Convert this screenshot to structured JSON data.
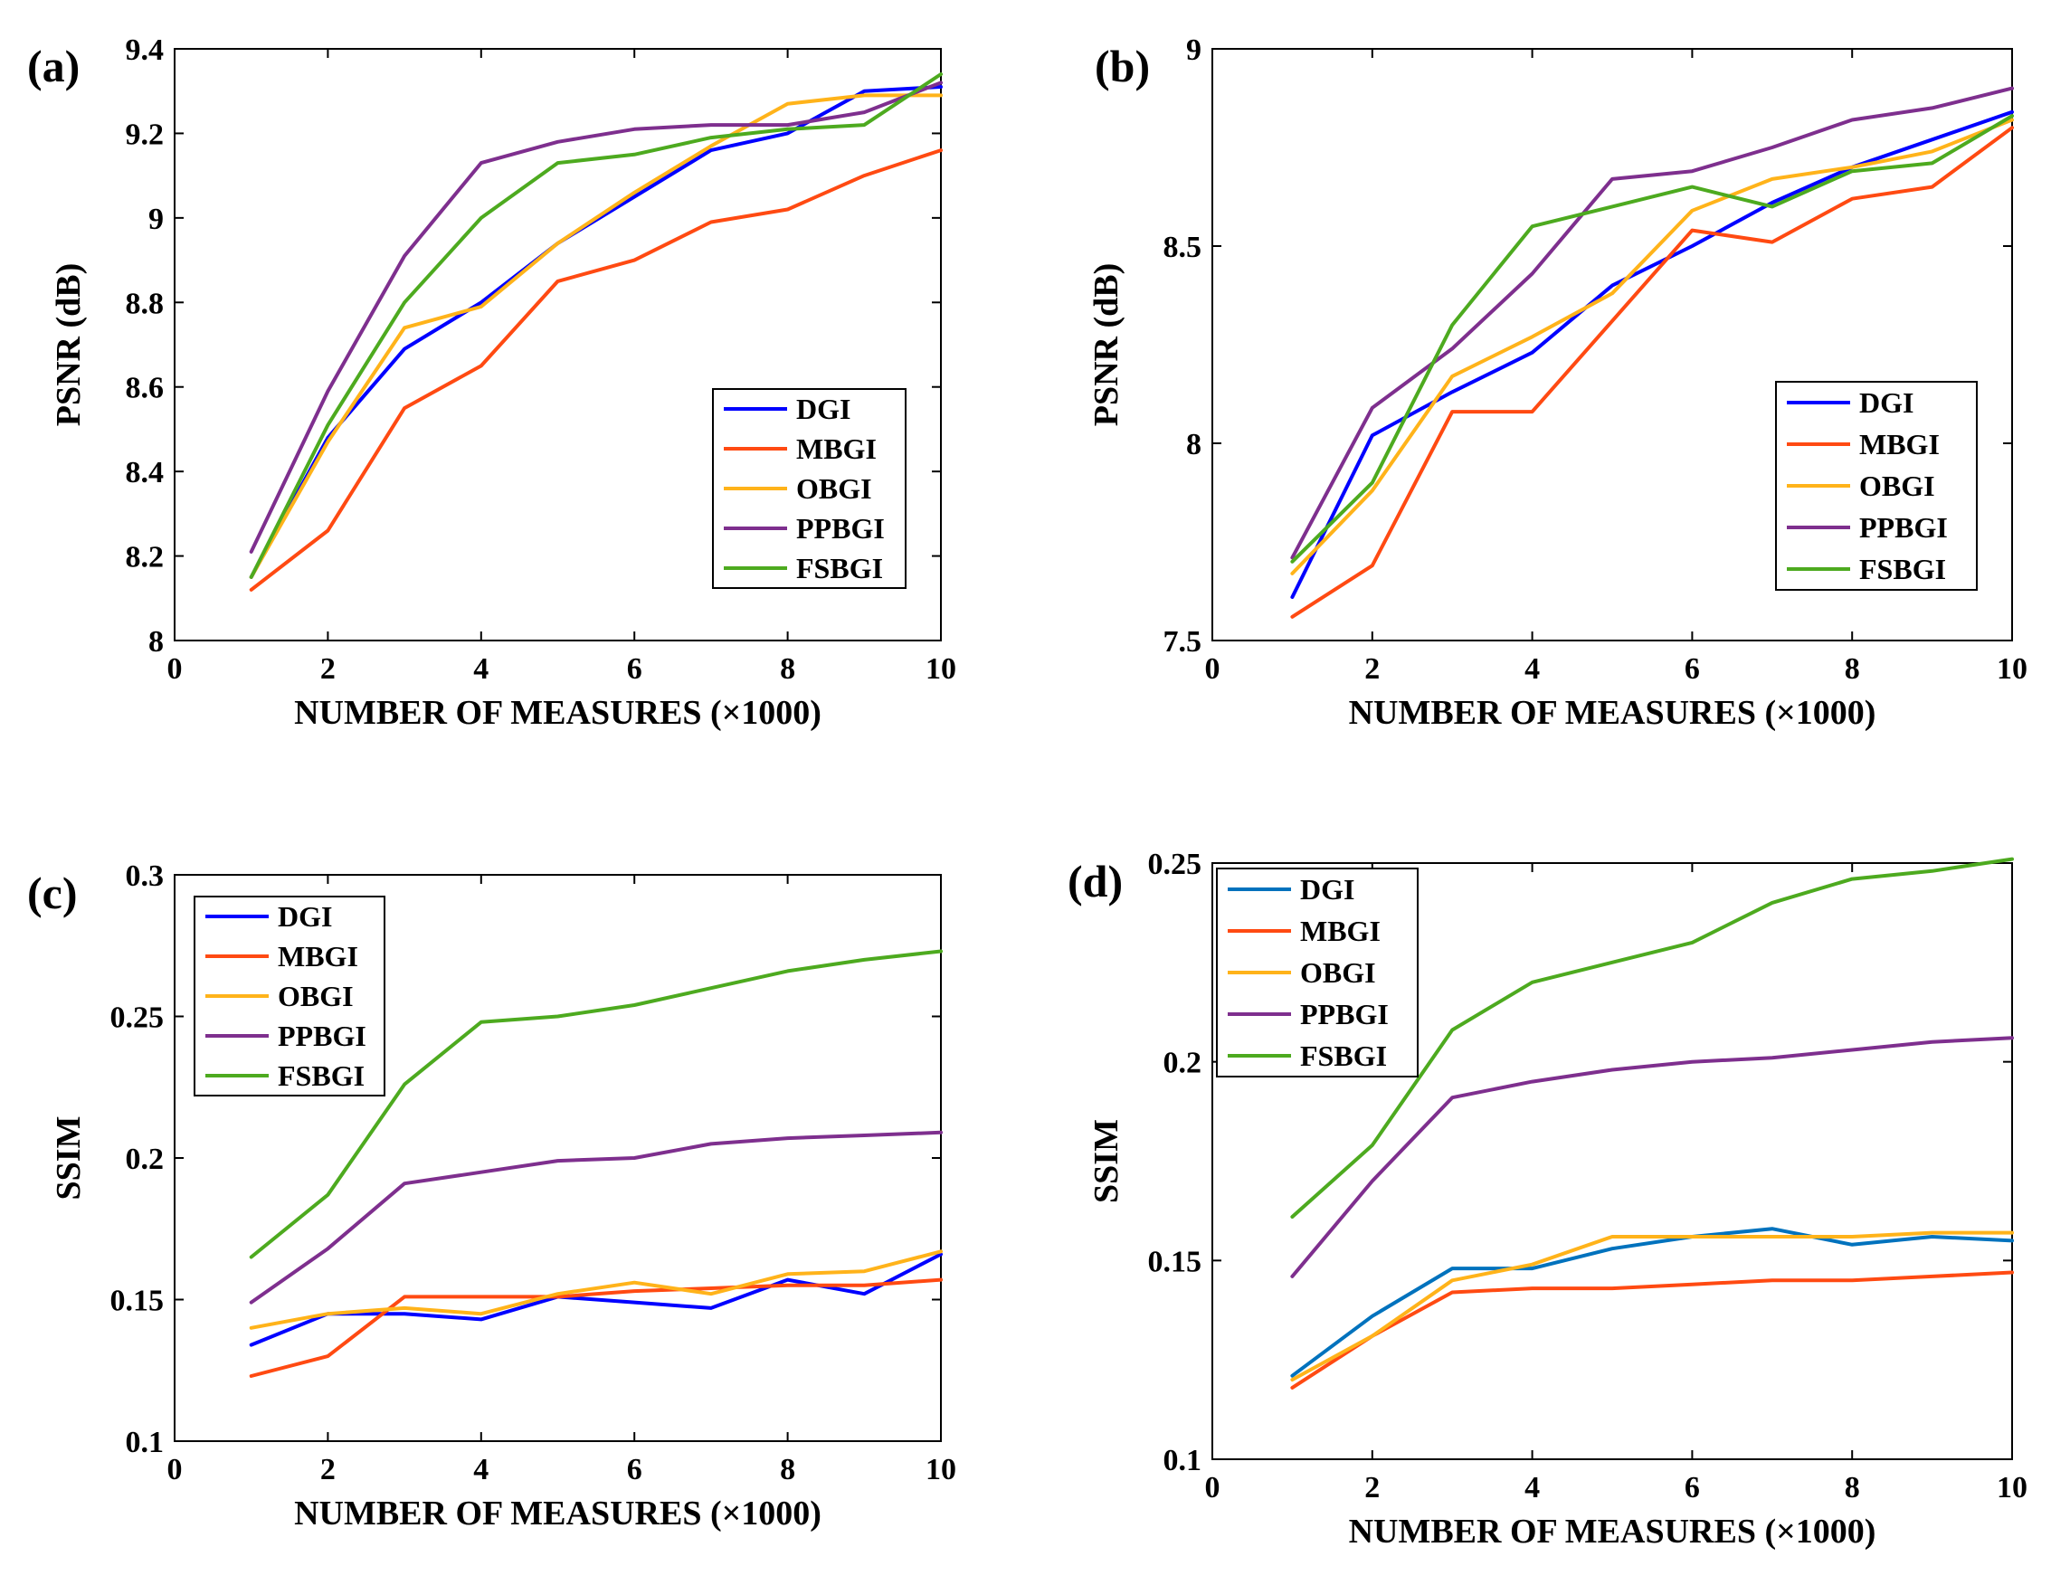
{
  "figure": {
    "panels": [
      "(a)",
      "(b)",
      "(c)",
      "(d)"
    ]
  },
  "chart_data": [
    {
      "type": "line",
      "panel_label": "(a)",
      "xlabel": "NUMBER OF MEASURES (×1000)",
      "ylabel": "PSNR (dB)",
      "xlim": [
        0,
        10
      ],
      "ylim": [
        8,
        9.4
      ],
      "xticks": [
        0,
        2,
        4,
        6,
        8,
        10
      ],
      "xtick_labels": [
        "0",
        "2",
        "4",
        "6",
        "8",
        "10"
      ],
      "yticks": [
        8,
        8.2,
        8.4,
        8.6,
        8.8,
        9,
        9.2,
        9.4
      ],
      "ytick_labels": [
        "8",
        "8.2",
        "8.4",
        "8.6",
        "8.8",
        "9",
        "9.2",
        "9.4"
      ],
      "grid": false,
      "legend_position": "lower-right",
      "x": [
        1,
        2,
        3,
        4,
        5,
        6,
        7,
        8,
        9,
        10
      ],
      "series": [
        {
          "name": "DGI",
          "color": "#0000ff",
          "values": [
            8.15,
            8.48,
            8.69,
            8.8,
            8.94,
            9.05,
            9.16,
            9.2,
            9.3,
            9.31
          ]
        },
        {
          "name": "MBGI",
          "color": "#ff4a12",
          "values": [
            8.12,
            8.26,
            8.55,
            8.65,
            8.85,
            8.9,
            8.99,
            9.02,
            9.1,
            9.16
          ]
        },
        {
          "name": "OBGI",
          "color": "#ffb31a",
          "values": [
            8.15,
            8.47,
            8.74,
            8.79,
            8.94,
            9.06,
            9.17,
            9.27,
            9.29,
            9.29
          ]
        },
        {
          "name": "PPBGI",
          "color": "#7e2f8e",
          "values": [
            8.21,
            8.59,
            8.91,
            9.13,
            9.18,
            9.21,
            9.22,
            9.22,
            9.25,
            9.32
          ]
        },
        {
          "name": "FSBGI",
          "color": "#4daa1f",
          "values": [
            8.15,
            8.51,
            8.8,
            9.0,
            9.13,
            9.15,
            9.19,
            9.21,
            9.22,
            9.34
          ]
        }
      ]
    },
    {
      "type": "line",
      "panel_label": "(b)",
      "xlabel": "NUMBER OF MEASURES (×1000)",
      "ylabel": "PSNR (dB)",
      "xlim": [
        0,
        10
      ],
      "ylim": [
        7.5,
        9
      ],
      "xticks": [
        0,
        2,
        4,
        6,
        8,
        10
      ],
      "xtick_labels": [
        "0",
        "2",
        "4",
        "6",
        "8",
        "10"
      ],
      "yticks": [
        7.5,
        8,
        8.5,
        9
      ],
      "ytick_labels": [
        "7.5",
        "8",
        "8.5",
        "9"
      ],
      "grid": false,
      "legend_position": "lower-right",
      "x": [
        1,
        2,
        3,
        4,
        5,
        6,
        7,
        8,
        9,
        10
      ],
      "series": [
        {
          "name": "DGI",
          "color": "#0000ff",
          "values": [
            7.61,
            8.02,
            8.13,
            8.23,
            8.4,
            8.5,
            8.61,
            8.7,
            8.77,
            8.84
          ]
        },
        {
          "name": "MBGI",
          "color": "#ff4a12",
          "values": [
            7.56,
            7.69,
            8.08,
            8.08,
            8.31,
            8.54,
            8.51,
            8.62,
            8.65,
            8.8
          ]
        },
        {
          "name": "OBGI",
          "color": "#ffb31a",
          "values": [
            7.67,
            7.88,
            8.17,
            8.27,
            8.38,
            8.59,
            8.67,
            8.7,
            8.74,
            8.82
          ]
        },
        {
          "name": "PPBGI",
          "color": "#7e2f8e",
          "values": [
            7.71,
            8.09,
            8.24,
            8.43,
            8.67,
            8.69,
            8.75,
            8.82,
            8.85,
            8.9
          ]
        },
        {
          "name": "FSBGI",
          "color": "#4daa1f",
          "values": [
            7.7,
            7.9,
            8.3,
            8.55,
            8.6,
            8.65,
            8.6,
            8.69,
            8.71,
            8.83
          ]
        }
      ]
    },
    {
      "type": "line",
      "panel_label": "(c)",
      "xlabel": "NUMBER OF MEASURES (×1000)",
      "ylabel": "SSIM",
      "xlim": [
        0,
        10
      ],
      "ylim": [
        0.1,
        0.3
      ],
      "xticks": [
        0,
        2,
        4,
        6,
        8,
        10
      ],
      "xtick_labels": [
        "0",
        "2",
        "4",
        "6",
        "8",
        "10"
      ],
      "yticks": [
        0.1,
        0.15,
        0.2,
        0.25,
        0.3
      ],
      "ytick_labels": [
        "0.1",
        "0.15",
        "0.2",
        "0.25",
        "0.3"
      ],
      "grid": false,
      "legend_position": "top-left",
      "x": [
        1,
        2,
        3,
        4,
        5,
        6,
        7,
        8,
        9,
        10
      ],
      "series": [
        {
          "name": "DGI",
          "color": "#0000ff",
          "values": [
            0.134,
            0.145,
            0.145,
            0.143,
            0.151,
            0.149,
            0.147,
            0.157,
            0.152,
            0.166
          ]
        },
        {
          "name": "MBGI",
          "color": "#ff4a12",
          "values": [
            0.123,
            0.13,
            0.151,
            0.151,
            0.151,
            0.153,
            0.154,
            0.155,
            0.155,
            0.157
          ]
        },
        {
          "name": "OBGI",
          "color": "#ffb31a",
          "values": [
            0.14,
            0.145,
            0.147,
            0.145,
            0.152,
            0.156,
            0.152,
            0.159,
            0.16,
            0.167
          ]
        },
        {
          "name": "PPBGI",
          "color": "#7e2f8e",
          "values": [
            0.149,
            0.168,
            0.191,
            0.195,
            0.199,
            0.2,
            0.205,
            0.207,
            0.208,
            0.209
          ]
        },
        {
          "name": "FSBGI",
          "color": "#4daa1f",
          "values": [
            0.165,
            0.187,
            0.226,
            0.248,
            0.25,
            0.254,
            0.26,
            0.266,
            0.27,
            0.273
          ]
        }
      ]
    },
    {
      "type": "line",
      "panel_label": "(d)",
      "xlabel": "NUMBER OF MEASURES (×1000)",
      "ylabel": "SSIM",
      "xlim": [
        0,
        10
      ],
      "ylim": [
        0.1,
        0.25
      ],
      "xticks": [
        0,
        2,
        4,
        6,
        8,
        10
      ],
      "xtick_labels": [
        "0",
        "2",
        "4",
        "6",
        "8",
        "10"
      ],
      "yticks": [
        0.1,
        0.15,
        0.2,
        0.25
      ],
      "ytick_labels": [
        "0.1",
        "0.15",
        "0.2",
        "0.25"
      ],
      "grid": false,
      "legend_position": "top-left",
      "x": [
        1,
        2,
        3,
        4,
        5,
        6,
        7,
        8,
        9,
        10
      ],
      "series": [
        {
          "name": "DGI",
          "color": "#0072bd",
          "values": [
            0.121,
            0.136,
            0.148,
            0.148,
            0.153,
            0.156,
            0.158,
            0.154,
            0.156,
            0.155
          ]
        },
        {
          "name": "MBGI",
          "color": "#ff4a12",
          "values": [
            0.118,
            0.131,
            0.142,
            0.143,
            0.143,
            0.144,
            0.145,
            0.145,
            0.146,
            0.147
          ]
        },
        {
          "name": "OBGI",
          "color": "#ffb31a",
          "values": [
            0.12,
            0.131,
            0.145,
            0.149,
            0.156,
            0.156,
            0.156,
            0.156,
            0.157,
            0.157
          ]
        },
        {
          "name": "PPBGI",
          "color": "#7e2f8e",
          "values": [
            0.146,
            0.17,
            0.191,
            0.195,
            0.198,
            0.2,
            0.201,
            0.203,
            0.205,
            0.206
          ]
        },
        {
          "name": "FSBGI",
          "color": "#4daa1f",
          "values": [
            0.161,
            0.179,
            0.208,
            0.22,
            0.225,
            0.23,
            0.24,
            0.246,
            0.248,
            0.251
          ]
        }
      ]
    }
  ]
}
